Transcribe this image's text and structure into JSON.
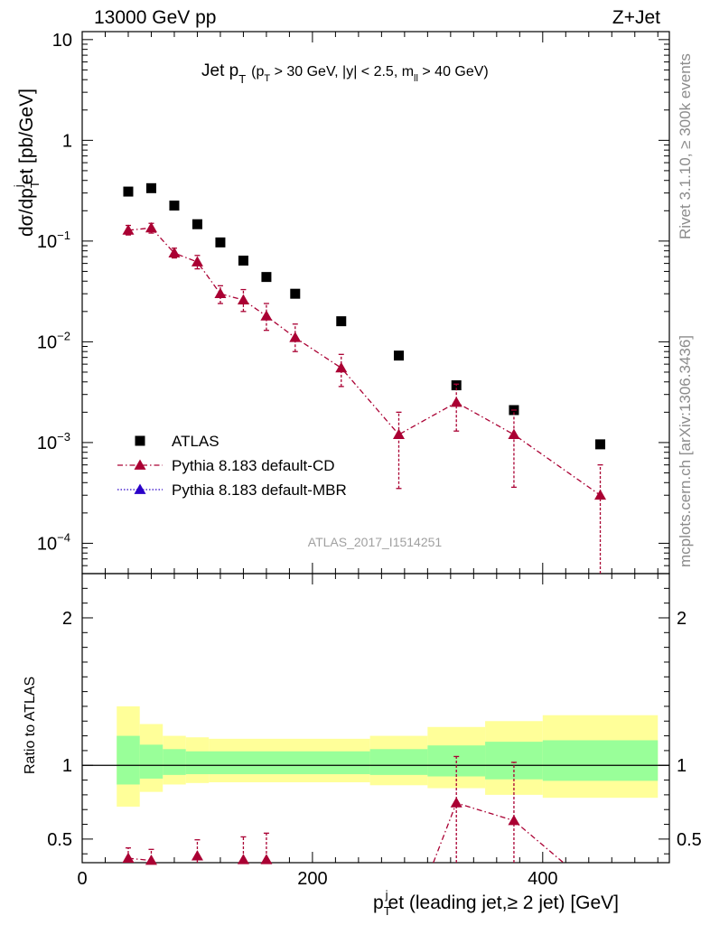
{
  "header": {
    "left": "13000 GeV pp",
    "right": "Z+Jet"
  },
  "plot_title": {
    "main": "Jet p",
    "main_sub": "T",
    "detail_open": "(p",
    "detail_sub1": "T",
    "detail_mid": " > 30 GeV, |y| < 2.5, m",
    "detail_sub2": "ll",
    "detail_end": " > 40 GeV)"
  },
  "side_text": {
    "rivet": "Rivet 3.1.10, ≥ 300k events",
    "mcplots": "mcplots.cern.ch [arXiv:1306.3436]"
  },
  "analysis_id": "ATLAS_2017_I1514251",
  "main_ylabel": {
    "part1": "dσ/dp",
    "sub": "T",
    "sup": "j",
    "part2": "et [pb/GeV]"
  },
  "ratio_ylabel": "Ratio to ATLAS",
  "xlabel": {
    "part1": "p",
    "sub": "T",
    "sup": "j",
    "part2": "et (leading jet,≥ 2 jet) [GeV]"
  },
  "legend": [
    {
      "label": "ATLAS",
      "marker": "square",
      "color": "#000000"
    },
    {
      "label": "Pythia 8.183 default-CD",
      "marker": "triangle",
      "color": "#aa0033",
      "dash": "dashdot"
    },
    {
      "label": "Pythia 8.183 default-MBR",
      "marker": "triangle",
      "color": "#2a00c8",
      "dash": "dotted"
    }
  ],
  "chart_data": {
    "type": "scatter",
    "xlim": [
      0,
      510
    ],
    "ylim": [
      5e-05,
      12
    ],
    "yscale": "log",
    "ratio_ylim": [
      0.34,
      2.3
    ],
    "x_ticks": [
      0,
      200,
      400
    ],
    "y_ticks": [
      {
        "v": 10,
        "m": "10",
        "e": ""
      },
      {
        "v": 1,
        "m": "1",
        "e": ""
      },
      {
        "v": 0.1,
        "m": "10",
        "e": "−1"
      },
      {
        "v": 0.01,
        "m": "10",
        "e": "−2"
      },
      {
        "v": 0.001,
        "m": "10",
        "e": "−3"
      },
      {
        "v": 0.0001,
        "m": "10",
        "e": "−4"
      }
    ],
    "ratio_ticks": [
      0.5,
      1,
      2
    ],
    "bins": [
      [
        30,
        50
      ],
      [
        50,
        70
      ],
      [
        70,
        90
      ],
      [
        90,
        110
      ],
      [
        110,
        130
      ],
      [
        130,
        150
      ],
      [
        150,
        170
      ],
      [
        170,
        200
      ],
      [
        200,
        250
      ],
      [
        250,
        300
      ],
      [
        300,
        350
      ],
      [
        350,
        400
      ],
      [
        400,
        500
      ]
    ],
    "atlas": {
      "x": [
        40,
        60,
        80,
        100,
        120,
        140,
        160,
        185,
        225,
        275,
        325,
        375,
        450
      ],
      "y": [
        0.31,
        0.335,
        0.225,
        0.147,
        0.097,
        0.064,
        0.044,
        0.03,
        0.016,
        0.0073,
        0.0037,
        0.0021,
        0.00096
      ]
    },
    "pythia_cd": {
      "x": [
        40,
        60,
        80,
        100,
        120,
        140,
        160,
        185,
        225,
        275,
        325,
        375,
        450
      ],
      "y": [
        0.128,
        0.135,
        0.076,
        0.062,
        0.03,
        0.026,
        0.018,
        0.011,
        0.0055,
        0.0012,
        0.0025,
        0.0012,
        0.0003
      ],
      "yerr_lo": [
        0.115,
        0.12,
        0.068,
        0.053,
        0.024,
        0.02,
        0.013,
        0.008,
        0.0036,
        0.00035,
        0.0013,
        0.00036,
        5e-05
      ],
      "yerr_hi": [
        0.143,
        0.15,
        0.085,
        0.072,
        0.036,
        0.033,
        0.024,
        0.015,
        0.0075,
        0.002,
        0.0038,
        0.0021,
        0.0006
      ]
    },
    "ratio_cd": {
      "x": [
        40,
        60,
        100,
        140,
        160,
        325,
        375
      ],
      "y": [
        0.37,
        0.355,
        0.385,
        0.36,
        0.36,
        0.745,
        0.625
      ],
      "yerr_lo": [
        0.34,
        0.34,
        0.34,
        0.34,
        0.34,
        0.34,
        0.34
      ],
      "yerr_hi": [
        0.44,
        0.43,
        0.495,
        0.515,
        0.54,
        1.06,
        1.02
      ]
    },
    "ratio_cd_segments": [
      {
        "x": [
          40,
          60
        ],
        "y": [
          0.37,
          0.355
        ]
      },
      {
        "x": [
          305,
          325,
          375,
          418
        ],
        "y": [
          0.34,
          0.745,
          0.625,
          0.34
        ]
      }
    ],
    "band_inner": [
      {
        "x0": 30,
        "x1": 50,
        "lo": 0.87,
        "hi": 1.2
      },
      {
        "x0": 50,
        "x1": 70,
        "lo": 0.91,
        "hi": 1.14
      },
      {
        "x0": 70,
        "x1": 90,
        "lo": 0.935,
        "hi": 1.11
      },
      {
        "x0": 90,
        "x1": 250,
        "lo": 0.94,
        "hi": 1.095
      },
      {
        "x0": 250,
        "x1": 300,
        "lo": 0.935,
        "hi": 1.11
      },
      {
        "x0": 300,
        "x1": 350,
        "lo": 0.925,
        "hi": 1.135
      },
      {
        "x0": 350,
        "x1": 400,
        "lo": 0.905,
        "hi": 1.16
      },
      {
        "x0": 400,
        "x1": 500,
        "lo": 0.895,
        "hi": 1.17
      }
    ],
    "band_outer": [
      {
        "x0": 30,
        "x1": 50,
        "lo": 0.72,
        "hi": 1.4
      },
      {
        "x0": 50,
        "x1": 70,
        "lo": 0.82,
        "hi": 1.28
      },
      {
        "x0": 70,
        "x1": 90,
        "lo": 0.87,
        "hi": 1.2
      },
      {
        "x0": 90,
        "x1": 110,
        "lo": 0.88,
        "hi": 1.19
      },
      {
        "x0": 110,
        "x1": 250,
        "lo": 0.885,
        "hi": 1.18
      },
      {
        "x0": 250,
        "x1": 300,
        "lo": 0.865,
        "hi": 1.2
      },
      {
        "x0": 300,
        "x1": 350,
        "lo": 0.845,
        "hi": 1.26
      },
      {
        "x0": 350,
        "x1": 400,
        "lo": 0.8,
        "hi": 1.3
      },
      {
        "x0": 400,
        "x1": 500,
        "lo": 0.78,
        "hi": 1.34
      }
    ],
    "colors": {
      "band_inner": "#99ff99",
      "band_outer": "#ffff99",
      "cd": "#aa0033",
      "mbr": "#2a00c8"
    }
  }
}
